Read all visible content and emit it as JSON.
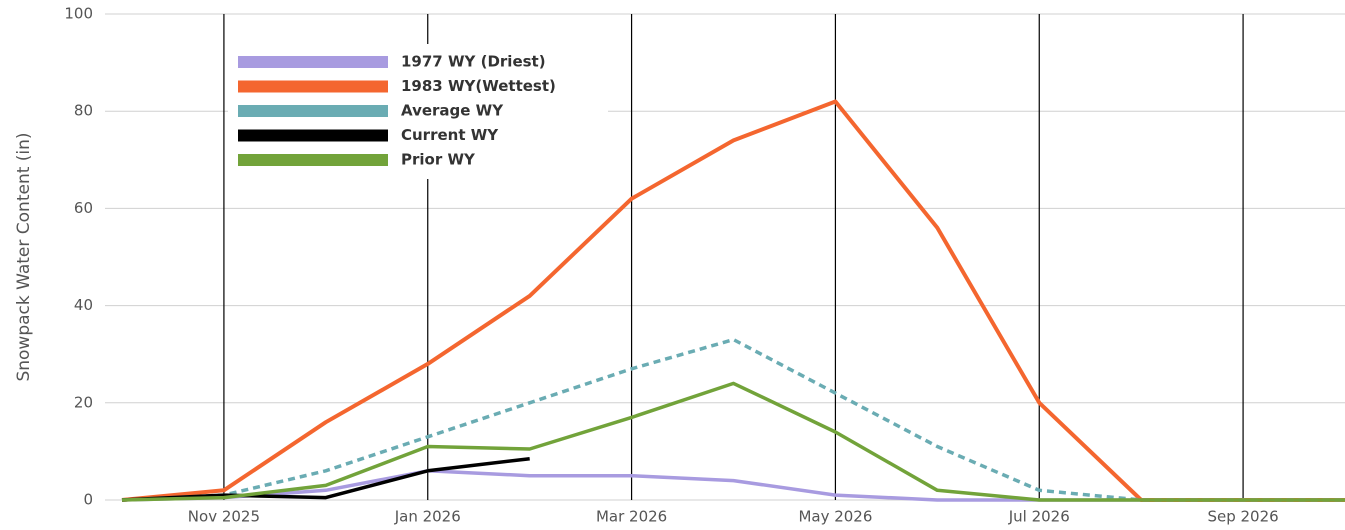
{
  "chart_data": {
    "type": "line",
    "ylabel": "Snowpack Water Content (in)",
    "x": [
      "2025-10",
      "2025-11",
      "2025-12",
      "2026-01",
      "2026-02",
      "2026-03",
      "2026-04",
      "2026-05",
      "2026-06",
      "2026-07",
      "2026-08",
      "2026-09",
      "2026-10"
    ],
    "xlim": [
      "2025-10",
      "2026-10"
    ],
    "xticks": [
      {
        "value": "2025-11",
        "label": "Nov 2025"
      },
      {
        "value": "2026-01",
        "label": "Jan 2026"
      },
      {
        "value": "2026-03",
        "label": "Mar 2026"
      },
      {
        "value": "2026-05",
        "label": "May 2026"
      },
      {
        "value": "2026-07",
        "label": "Jul 2026"
      },
      {
        "value": "2026-09",
        "label": "Sep 2026"
      }
    ],
    "ylim": [
      0,
      100
    ],
    "yticks": [
      0,
      20,
      40,
      60,
      80,
      100
    ],
    "grid": true,
    "legend": "upper left",
    "series": [
      {
        "name": "1977 WY (Driest)",
        "color": "#a89be0",
        "values": [
          0,
          0.5,
          2,
          6,
          5,
          5,
          4,
          1,
          0,
          0,
          0,
          0,
          0
        ]
      },
      {
        "name": "1983 WY(Wettest)",
        "color": "#f4662f",
        "values": [
          0,
          2,
          16,
          28,
          42,
          62,
          74,
          82,
          56,
          20,
          0,
          0,
          0
        ]
      },
      {
        "name": "Average WY",
        "color": "#6aacb3",
        "dashed": true,
        "values": [
          0,
          1,
          6,
          13,
          20,
          27,
          33,
          22,
          11,
          2,
          0,
          0,
          0
        ]
      },
      {
        "name": "Current WY",
        "color": "#000000",
        "values": [
          0,
          1,
          0.5,
          6,
          8.5,
          null,
          null,
          null,
          null,
          null,
          null,
          null,
          null
        ]
      },
      {
        "name": "Prior WY",
        "color": "#72a33a",
        "values": [
          0,
          0.5,
          3,
          11,
          10.5,
          17,
          24,
          14,
          2,
          0,
          0,
          0,
          0
        ]
      }
    ]
  }
}
